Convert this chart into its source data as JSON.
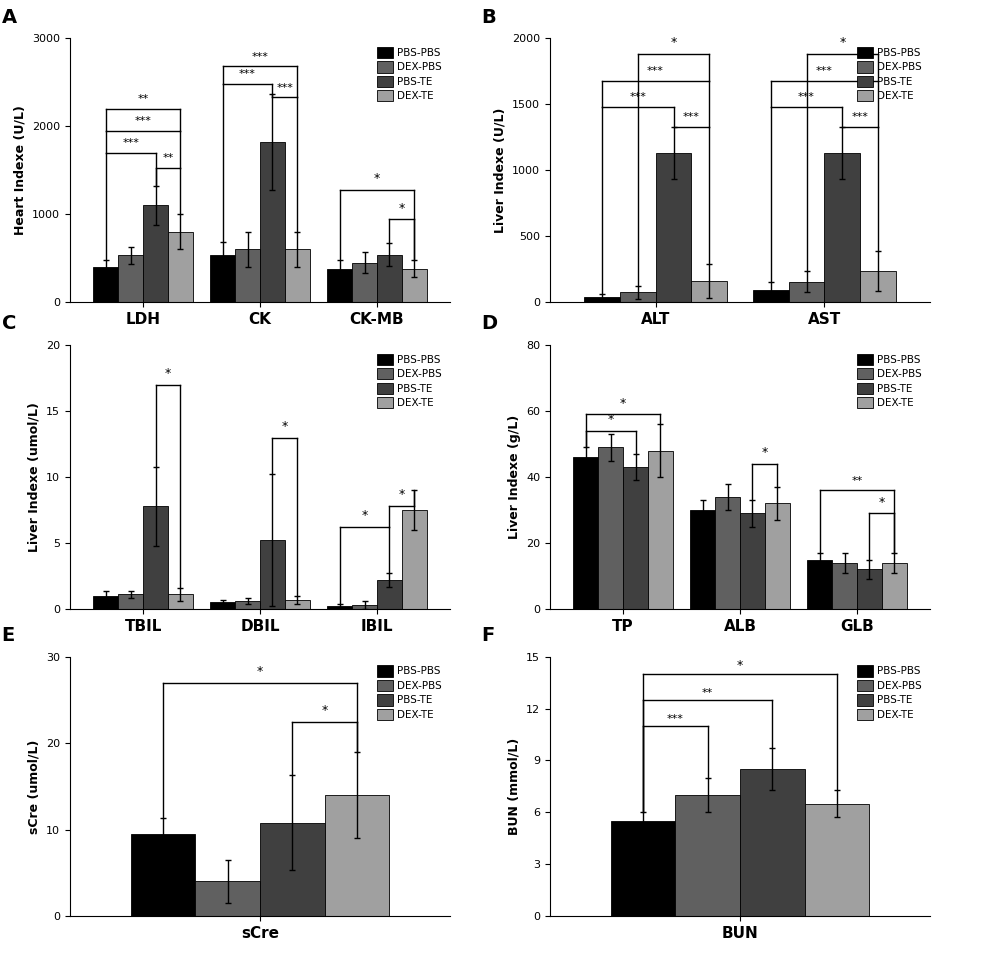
{
  "colors": [
    "#000000",
    "#606060",
    "#404040",
    "#a0a0a0"
  ],
  "legend_labels": [
    "PBS-PBS",
    "DEX-PBS",
    "PBS-TE",
    "DEX-TE"
  ],
  "A": {
    "ylabel": "Heart Indexe (U/L)",
    "ylim": [
      0,
      3000
    ],
    "yticks": [
      0,
      1000,
      2000,
      3000
    ],
    "groups": [
      "LDH",
      "CK",
      "CK-MB"
    ],
    "values": [
      [
        400,
        530,
        1100,
        800
      ],
      [
        530,
        600,
        1820,
        600
      ],
      [
        380,
        450,
        540,
        380
      ]
    ],
    "errors": [
      [
        80,
        100,
        220,
        200
      ],
      [
        150,
        200,
        550,
        200
      ],
      [
        100,
        120,
        130,
        100
      ]
    ]
  },
  "B": {
    "ylabel": "Liver Indexe (U/L)",
    "ylim": [
      0,
      2000
    ],
    "yticks": [
      0,
      500,
      1000,
      1500,
      2000
    ],
    "groups": [
      "ALT",
      "AST"
    ],
    "values": [
      [
        35,
        75,
        1130,
        160
      ],
      [
        90,
        155,
        1130,
        235
      ]
    ],
    "errors": [
      [
        25,
        50,
        200,
        130
      ],
      [
        60,
        80,
        200,
        150
      ]
    ]
  },
  "C": {
    "ylabel": "Liver Indexe (umol/L)",
    "ylim": [
      0,
      20
    ],
    "yticks": [
      0,
      5,
      10,
      15,
      20
    ],
    "groups": [
      "TBIL",
      "DBIL",
      "IBIL"
    ],
    "values": [
      [
        1.0,
        1.1,
        7.8,
        1.1
      ],
      [
        0.5,
        0.6,
        5.2,
        0.7
      ],
      [
        0.2,
        0.3,
        2.2,
        7.5
      ]
    ],
    "errors": [
      [
        0.4,
        0.3,
        3.0,
        0.5
      ],
      [
        0.2,
        0.2,
        5.0,
        0.3
      ],
      [
        0.15,
        0.3,
        0.5,
        1.5
      ]
    ]
  },
  "D": {
    "ylabel": "Liver Indexe (g/L)",
    "ylim": [
      0,
      80
    ],
    "yticks": [
      0,
      20,
      40,
      60,
      80
    ],
    "groups": [
      "TP",
      "ALB",
      "GLB"
    ],
    "values": [
      [
        46,
        49,
        43,
        48
      ],
      [
        30,
        34,
        29,
        32
      ],
      [
        15,
        14,
        12,
        14
      ]
    ],
    "errors": [
      [
        3,
        4,
        4,
        8
      ],
      [
        3,
        4,
        4,
        5
      ],
      [
        2,
        3,
        3,
        3
      ]
    ]
  },
  "E": {
    "ylabel": "sCre (umol/L)",
    "xlabel": "sCre",
    "ylim": [
      0,
      30
    ],
    "yticks": [
      0,
      10,
      20,
      30
    ],
    "values": [
      9.5,
      4.0,
      10.8,
      14.0
    ],
    "errors": [
      1.8,
      2.5,
      5.5,
      5.0
    ]
  },
  "F": {
    "ylabel": "BUN (mmol/L)",
    "xlabel": "BUN",
    "ylim": [
      0,
      15
    ],
    "yticks": [
      0,
      3,
      6,
      9,
      12,
      15
    ],
    "values": [
      5.5,
      7.0,
      8.5,
      6.5
    ],
    "errors": [
      0.5,
      1.0,
      1.2,
      0.8
    ]
  }
}
